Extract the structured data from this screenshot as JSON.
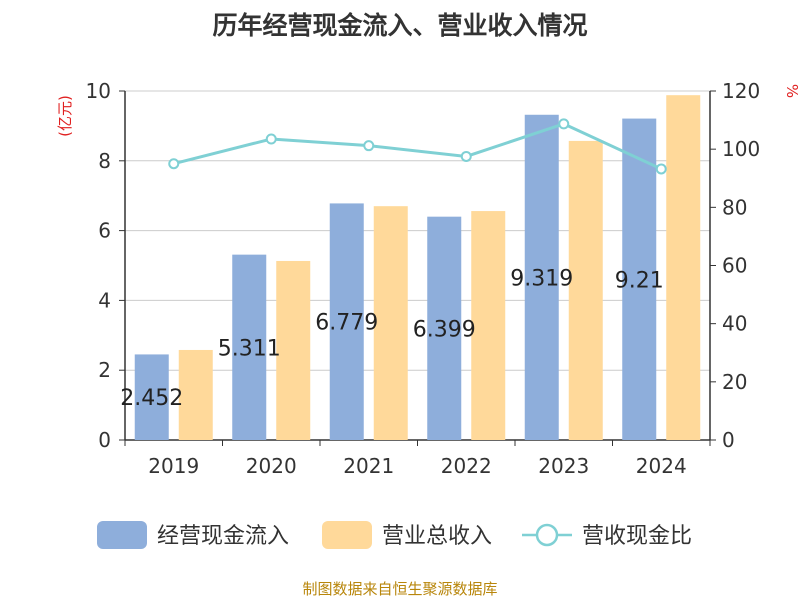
{
  "chart_data": {
    "type": "bar",
    "title": "历年经营现金流入、营业收入情况",
    "ylabel_left": "(亿元)",
    "ylabel_right": "%",
    "categories": [
      "2019",
      "2020",
      "2021",
      "2022",
      "2023",
      "2024"
    ],
    "ylim_left": [
      0,
      10
    ],
    "yticks_left": [
      0,
      2,
      4,
      6,
      8,
      10
    ],
    "ylim_right": [
      0,
      120
    ],
    "yticks_right": [
      0,
      20,
      40,
      60,
      80,
      100,
      120
    ],
    "grid": true,
    "legend_position": "bottom",
    "series": [
      {
        "name": "经营现金流入",
        "type": "bar",
        "axis": "left",
        "color": "#8eaedb",
        "values": [
          2.452,
          5.311,
          6.779,
          6.399,
          9.319,
          9.21
        ],
        "labels": [
          "2.452",
          "5.311",
          "6.779",
          "6.399",
          "9.319",
          "9.21"
        ]
      },
      {
        "name": "营业总收入",
        "type": "bar",
        "axis": "left",
        "color": "#ffd99a",
        "values": [
          2.58,
          5.13,
          6.7,
          6.56,
          8.57,
          9.88
        ]
      },
      {
        "name": "营收现金比",
        "type": "line",
        "axis": "right",
        "color": "#7fd0d4",
        "values": [
          95.0,
          103.5,
          101.2,
          97.5,
          108.7,
          93.2
        ]
      }
    ]
  },
  "source": "制图数据来自恒生聚源数据库",
  "colors": {
    "axis_left_label": "#e02020",
    "axis_right_label": "#e02020",
    "grid": "#cccccc",
    "axis": "#333333",
    "text": "#333333"
  }
}
